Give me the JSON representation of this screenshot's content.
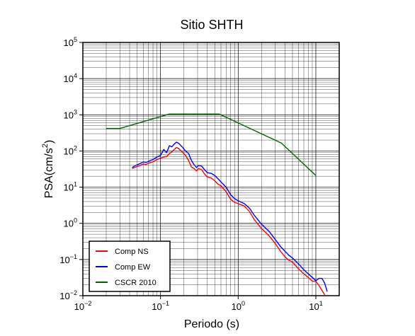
{
  "chart_data": {
    "type": "line",
    "title": "Sitio SHTH",
    "xlabel": "Periodo (s)",
    "ylabel_main": "PSA(cm/s",
    "ylabel_sup": "2",
    "ylabel_tail": ")",
    "x_scale": "log",
    "y_scale": "log",
    "xlim": [
      0.01,
      20
    ],
    "ylim": [
      0.01,
      100000
    ],
    "grid": true,
    "legend_position": "bottom-left",
    "x_ticks": [
      {
        "value": 0.01,
        "base": "10",
        "exp": "−2"
      },
      {
        "value": 0.1,
        "base": "10",
        "exp": "−1"
      },
      {
        "value": 1,
        "base": "10",
        "exp": "0"
      },
      {
        "value": 10,
        "base": "10",
        "exp": "1"
      }
    ],
    "y_ticks": [
      {
        "value": 0.01,
        "base": "10",
        "exp": "−2"
      },
      {
        "value": 0.1,
        "base": "10",
        "exp": "−1"
      },
      {
        "value": 1,
        "base": "10",
        "exp": "0"
      },
      {
        "value": 10,
        "base": "10",
        "exp": "1"
      },
      {
        "value": 100,
        "base": "10",
        "exp": "2"
      },
      {
        "value": 1000,
        "base": "10",
        "exp": "3"
      },
      {
        "value": 10000,
        "base": "10",
        "exp": "4"
      },
      {
        "value": 100000,
        "base": "10",
        "exp": "5"
      }
    ],
    "series": [
      {
        "name": "Comp NS",
        "color": "#ff0000",
        "x": [
          0.043,
          0.048,
          0.055,
          0.06,
          0.065,
          0.07,
          0.08,
          0.09,
          0.1,
          0.11,
          0.12,
          0.13,
          0.14,
          0.15,
          0.16,
          0.17,
          0.19,
          0.21,
          0.23,
          0.25,
          0.27,
          0.29,
          0.31,
          0.34,
          0.37,
          0.4,
          0.45,
          0.5,
          0.55,
          0.6,
          0.7,
          0.8,
          0.9,
          1.0,
          1.2,
          1.4,
          1.6,
          1.8,
          2.0,
          2.5,
          3.0,
          3.5,
          4.0,
          4.5,
          5.0,
          6.0,
          7.0,
          8.0,
          9.0,
          10.0,
          11.0,
          12.0,
          13.0
        ],
        "y": [
          33,
          36,
          40,
          44,
          42,
          46,
          50,
          58,
          63,
          68,
          70,
          85,
          95,
          110,
          125,
          118,
          95,
          75,
          55,
          36,
          33,
          28,
          33,
          30,
          23,
          19,
          18,
          15,
          12,
          11,
          7.5,
          4.6,
          3.8,
          3.5,
          3.0,
          2.1,
          1.3,
          0.95,
          0.72,
          0.45,
          0.28,
          0.17,
          0.12,
          0.095,
          0.085,
          0.055,
          0.04,
          0.032,
          0.025,
          0.025,
          0.019,
          0.014,
          0.0105
        ]
      },
      {
        "name": "Comp EW",
        "color": "#0000ff",
        "x": [
          0.043,
          0.048,
          0.055,
          0.06,
          0.065,
          0.07,
          0.08,
          0.09,
          0.1,
          0.11,
          0.12,
          0.13,
          0.14,
          0.15,
          0.16,
          0.17,
          0.19,
          0.21,
          0.23,
          0.25,
          0.27,
          0.29,
          0.31,
          0.34,
          0.37,
          0.4,
          0.45,
          0.5,
          0.55,
          0.6,
          0.7,
          0.8,
          0.9,
          1.0,
          1.2,
          1.4,
          1.6,
          1.8,
          2.0,
          2.5,
          3.0,
          3.5,
          4.0,
          4.5,
          5.0,
          6.0,
          7.0,
          8.0,
          9.0,
          10.0,
          11.0,
          12.0,
          13.0,
          14.0
        ],
        "y": [
          35,
          40,
          45,
          50,
          48,
          52,
          58,
          68,
          75,
          110,
          90,
          140,
          130,
          155,
          175,
          165,
          130,
          100,
          85,
          55,
          42,
          35,
          40,
          38,
          30,
          25,
          24,
          21,
          17,
          14,
          10,
          6.2,
          4.8,
          4.2,
          3.5,
          2.6,
          1.7,
          1.25,
          0.95,
          0.6,
          0.36,
          0.23,
          0.17,
          0.13,
          0.11,
          0.075,
          0.052,
          0.04,
          0.032,
          0.026,
          0.03,
          0.03,
          0.022,
          0.013
        ]
      },
      {
        "name": "CSCR 2010",
        "color": "#006600",
        "x": [
          0.02,
          0.03,
          0.13,
          0.57,
          3.6,
          10.0
        ],
        "y": [
          420,
          420,
          1050,
          1050,
          165,
          21
        ]
      }
    ]
  }
}
